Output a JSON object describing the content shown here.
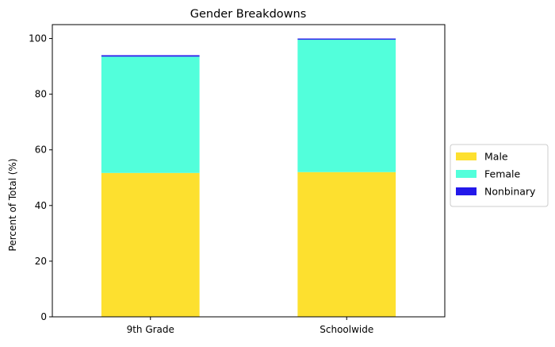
{
  "chart_data": {
    "type": "bar",
    "stacked": true,
    "title": "Gender Breakdowns",
    "xlabel": "",
    "ylabel": "Percent of Total (%)",
    "ylim": [
      0,
      105
    ],
    "yticks": [
      0,
      20,
      40,
      60,
      80,
      100
    ],
    "categories": [
      "9th Grade",
      "Schoolwide"
    ],
    "series": [
      {
        "name": "Male",
        "color": "#FDE02F",
        "values": [
          51.7,
          52.0
        ]
      },
      {
        "name": "Female",
        "color": "#52FFDB",
        "values": [
          41.8,
          47.6
        ]
      },
      {
        "name": "Nonbinary",
        "color": "#2318EA",
        "values": [
          0.5,
          0.4
        ]
      }
    ],
    "grid": false,
    "legend": "center-right"
  }
}
